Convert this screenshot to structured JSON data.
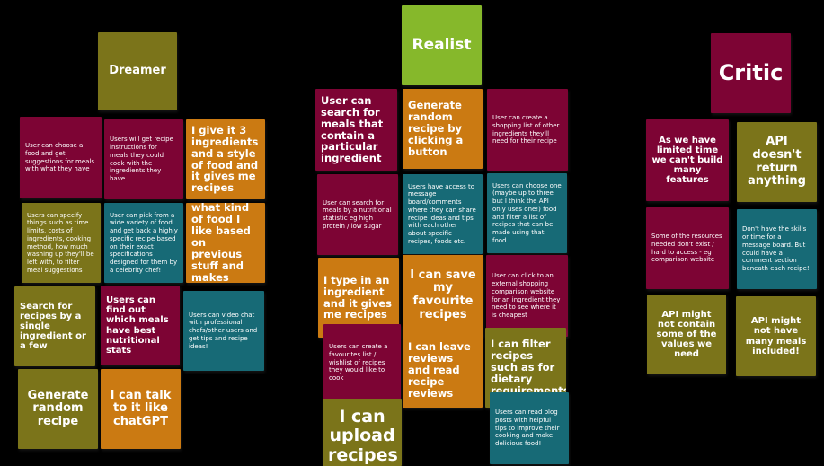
{
  "columns": {
    "dreamer": {
      "title": "Dreamer",
      "notes": [
        "User can choose a food and get suggestions for meals with what they have",
        "Users will get recipe instructions for meals they could cook with the ingredients they have",
        "I give it 3 ingredients and a style of food and it gives me recipes",
        "Users can specify things such as time limits, costs of ingredients, cooking method, how much washing up they'll be left with, to filter meal suggestions",
        "User can pick from a wide variety of food and get back a highly specific recipe based on their exact specifications designed for them by a celebrity chef!",
        "It knows what kind of food I like based on previous stuff and makes suggestions",
        "Search for recipes by a single ingredient or a few",
        "Users can find out which meals have best nutritional stats",
        "Users can video chat with professional chefs/other users and get tips and recipe ideas!",
        "Generate random recipe",
        "I can talk to it like chatGPT"
      ]
    },
    "realist": {
      "title": "Realist",
      "notes": [
        "User can search for meals that contain a particular ingredient",
        "Generate random recipe by clicking a button",
        "User can create a shopping list of other ingredients they'll need for their recipe",
        "User can search for meals by a nutritional statistic eg high protein / low sugar",
        "Users have access to message board/comments where they can share recipe ideas and tips with each other about specific recipes, foods etc.",
        "Users can choose one (maybe up to three but I think the API only uses one!) food and filter a list of recipes that can be made using that food.",
        "I type in an ingredient and it gives me recipes",
        "I can save my favourite recipes",
        "User can click to an external shopping comparison website for an ingredient they need to see where it is cheapest",
        "Users can create a favourites list / wishlist of recipes they would like to cook",
        "I can leave reviews and read recipe reviews",
        "I can filter recipes such as for dietary requirements",
        "I can upload recipes",
        "Users can read blog posts with helpful tips to improve their cooking and make delicious food!"
      ]
    },
    "critic": {
      "title": "Critic",
      "notes": [
        "As we have limited time we can't build many features",
        "API doesn't return anything",
        "Some of the resources needed don't exist / hard to access - eg comparison website",
        "Don't have the skills or time for a message board. But could have a comment section beneath each recipe!",
        "API might not contain some of the values we need",
        "API might not have many meals included!"
      ]
    }
  },
  "colors": {
    "background": "#000000",
    "crimson": "#7d0434",
    "orange": "#cb7a12",
    "olive": "#7b741a",
    "teal": "#176a76",
    "lime": "#86b82b"
  }
}
